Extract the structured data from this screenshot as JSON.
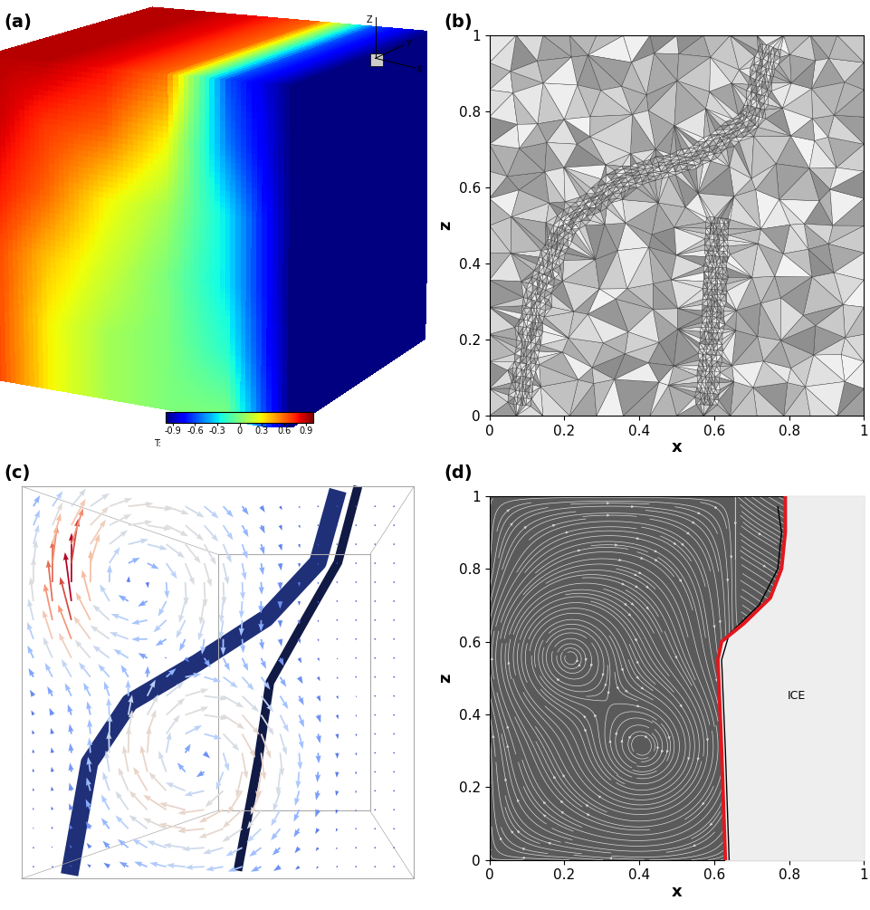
{
  "chart_data": [
    {
      "type": "surface",
      "title": "(a)",
      "tick_labels": false,
      "axis_labels": [
        "Z",
        "Y",
        "X"
      ],
      "x": [
        0,
        0.2,
        0.4,
        0.6,
        0.8,
        1
      ],
      "z": [
        0,
        0.2,
        0.4,
        0.6,
        0.8,
        1
      ],
      "values": [
        [
          0.7,
          0.3,
          0.1,
          0.0,
          0.0,
          -1.0
        ],
        [
          0.7,
          0.3,
          0.1,
          0.0,
          -0.2,
          -1.0
        ],
        [
          0.7,
          0.4,
          0.2,
          0.0,
          -0.3,
          -1.0
        ],
        [
          0.8,
          0.6,
          0.3,
          0.1,
          -0.3,
          -1.0
        ],
        [
          0.9,
          0.7,
          0.6,
          0.3,
          -0.5,
          -1.0
        ],
        [
          0.9,
          0.9,
          0.8,
          0.6,
          -0.6,
          -1.0
        ]
      ],
      "colorbar": {
        "label": "T:",
        "range": [
          -1,
          1
        ],
        "ticks": [
          -0.9,
          -0.6,
          -0.3,
          0,
          0.3,
          0.6,
          0.9
        ]
      }
    },
    {
      "type": "mesh",
      "title": "(b)",
      "xlabel": "x",
      "ylabel": "z",
      "xlim": [
        0,
        1
      ],
      "ylim": [
        0,
        1
      ],
      "xticks": [
        0,
        0.2,
        0.4,
        0.6,
        0.8,
        1
      ],
      "yticks": [
        0,
        0.2,
        0.4,
        0.6,
        0.8,
        1
      ]
    },
    {
      "type": "vector",
      "title": "(c)",
      "tick_labels": false
    },
    {
      "type": "line",
      "title": "(d)",
      "xlabel": "x",
      "ylabel": "z",
      "xlim": [
        0,
        1
      ],
      "ylim": [
        0,
        1
      ],
      "xticks": [
        0,
        0.2,
        0.4,
        0.6,
        0.8,
        1
      ],
      "yticks": [
        0,
        0.2,
        0.4,
        0.6,
        0.8,
        1
      ],
      "series": [
        {
          "color": "#e3171e",
          "x": [
            0.63,
            0.62,
            0.61,
            0.62,
            0.68,
            0.75,
            0.78,
            0.79,
            0.79
          ],
          "values": [
            0,
            0.3,
            0.55,
            0.6,
            0.65,
            0.72,
            0.8,
            0.9,
            1.0
          ]
        },
        {
          "color": "#000000",
          "x": [
            0.64,
            0.63,
            0.62,
            0.64,
            0.72,
            0.77,
            0.78,
            0.77
          ],
          "values": [
            0,
            0.3,
            0.55,
            0.62,
            0.7,
            0.8,
            0.9,
            0.97
          ]
        }
      ],
      "annotations": [
        "ICE"
      ]
    }
  ]
}
